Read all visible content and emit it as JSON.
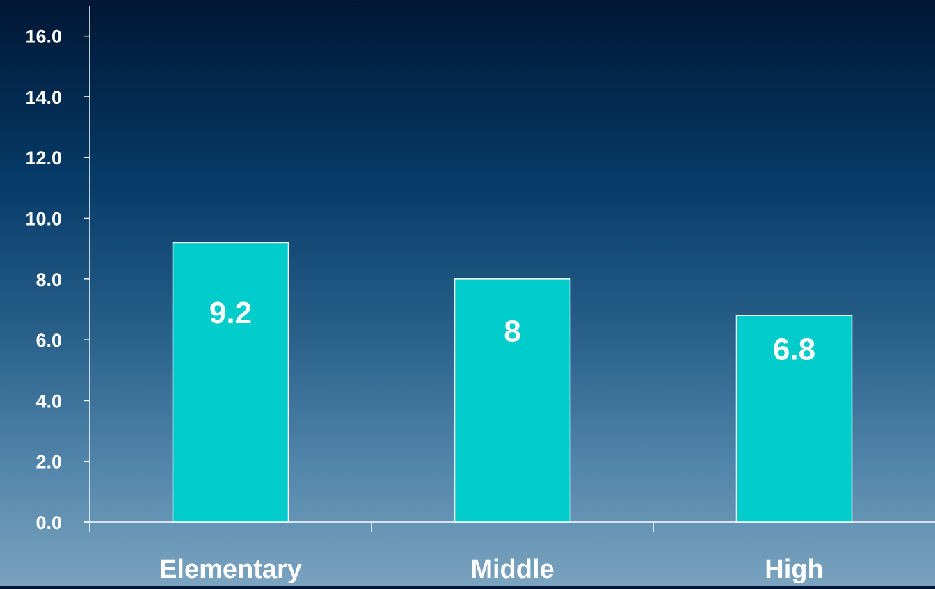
{
  "chart_data": {
    "type": "bar",
    "title": "",
    "xlabel": "",
    "ylabel": "",
    "categories": [
      "Elementary",
      "Middle",
      "High"
    ],
    "values": [
      9.2,
      8,
      6.8
    ],
    "value_labels": [
      "9.2",
      "8",
      "6.8"
    ],
    "ylim": [
      0,
      17
    ],
    "yticks": [
      0,
      2,
      4,
      6,
      8,
      10,
      12,
      14,
      16
    ],
    "ytick_labels": [
      "0.0",
      "2.0",
      "4.0",
      "6.0",
      "8.0",
      "10.0",
      "12.0",
      "14.0",
      "16.0"
    ],
    "grid": false,
    "legend": "none"
  },
  "colors": {
    "bar_fill": "#00cccc",
    "bar_stroke": "#ffffff",
    "axis": "#ffffff",
    "text": "#ffffff"
  }
}
